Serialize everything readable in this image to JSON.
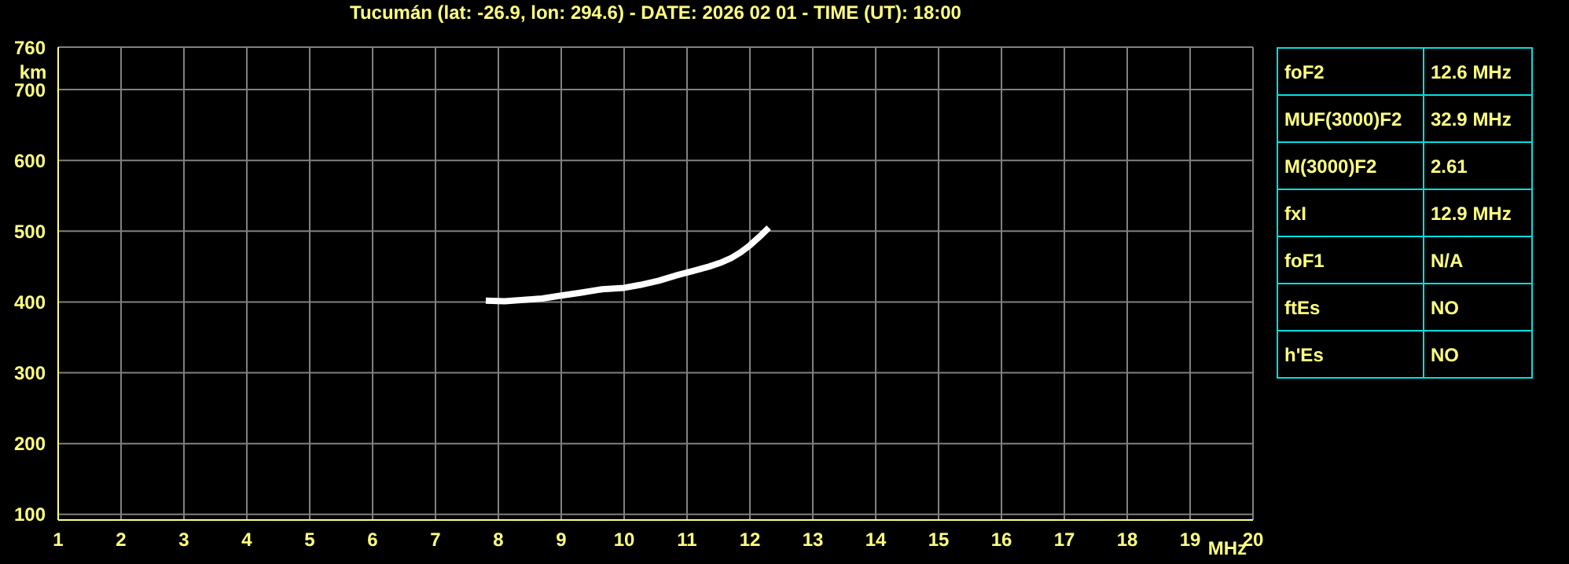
{
  "chart_data": [
    {
      "type": "line",
      "title": "Tucumán (lat: -26.9, lon: 294.6) - DATE: 2026 02 01 - TIME (UT): 18:00",
      "xlabel": "MHz",
      "ylabel": "km",
      "x": [
        7.8,
        8.1,
        8.4,
        8.7,
        9.0,
        9.3,
        9.65,
        10.0,
        10.25,
        10.55,
        10.85,
        11.1,
        11.35,
        11.55,
        11.7,
        11.85,
        12.0,
        12.15,
        12.3
      ],
      "series": [
        {
          "color": "#ffffff",
          "values": [
            402,
            401,
            403,
            405,
            409,
            413,
            418,
            420,
            424,
            430,
            438,
            444,
            450,
            456,
            462,
            470,
            480,
            492,
            505
          ]
        }
      ],
      "xlim": [
        1,
        20
      ],
      "xticks": [
        1,
        2,
        3,
        4,
        5,
        6,
        7,
        8,
        9,
        10,
        11,
        12,
        13,
        14,
        15,
        16,
        17,
        18,
        19,
        20
      ],
      "ylim": [
        92,
        760
      ],
      "yticks": [
        100,
        200,
        300,
        400,
        500,
        600,
        700,
        760
      ],
      "grid": true,
      "marker": "none",
      "legend": false
    },
    {
      "type": "other",
      "categories": [
        "foF2",
        "MUF(3000)F2",
        "M(3000)F2",
        "fxI",
        "foF1",
        "ftEs",
        "h'Es"
      ],
      "value_labels": [
        "12.6 MHz",
        "32.9 MHz",
        "2.61",
        "12.9 MHz",
        "N/A",
        "NO",
        "NO"
      ]
    }
  ]
}
